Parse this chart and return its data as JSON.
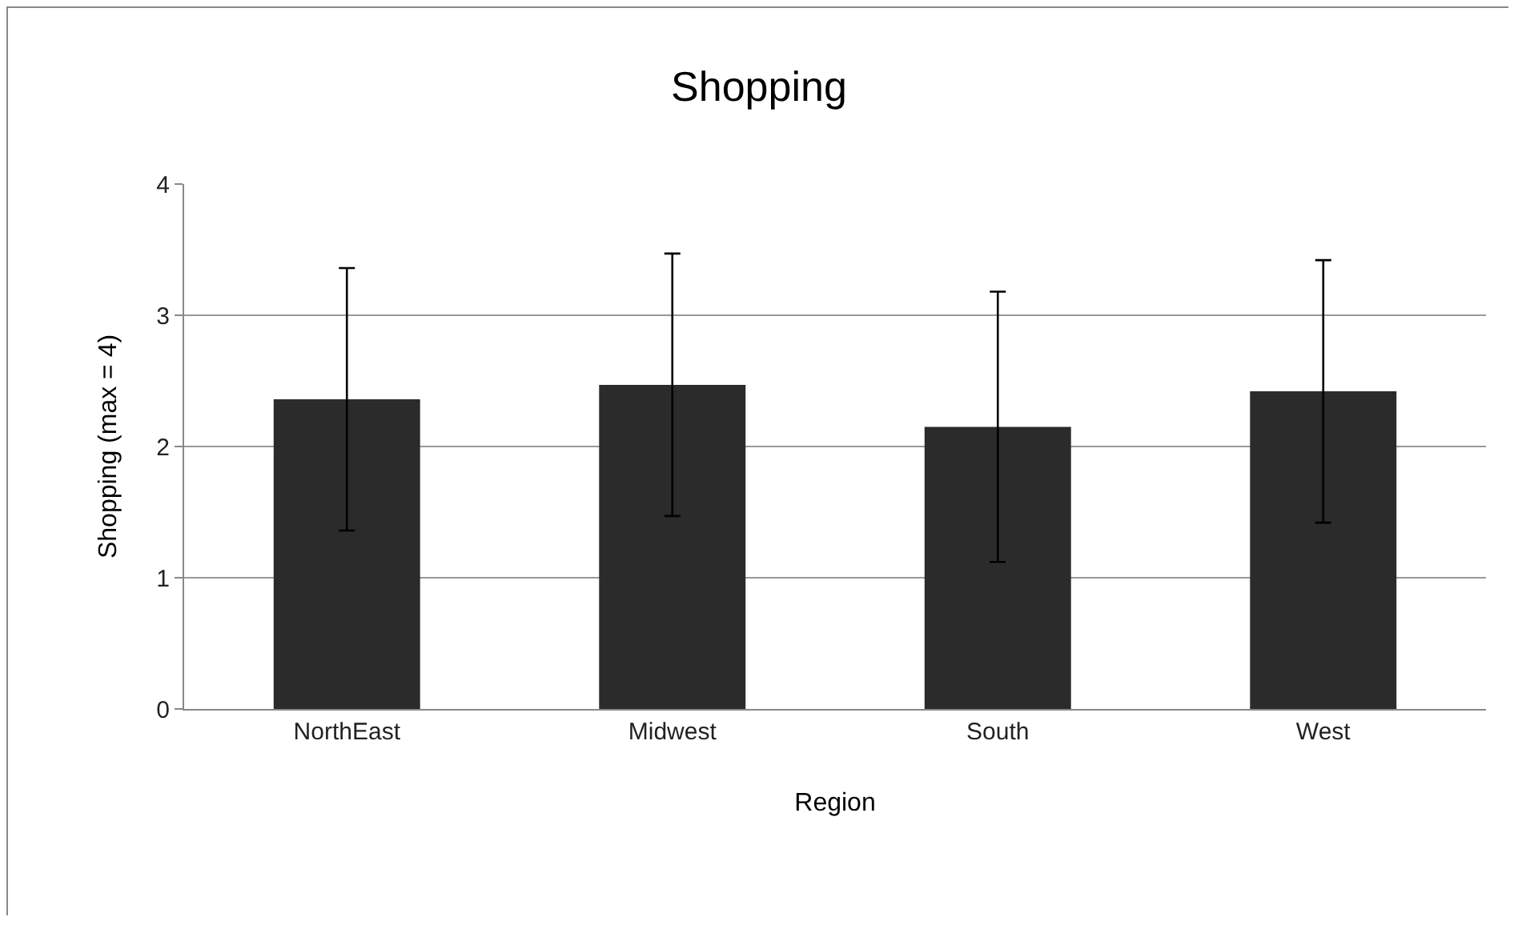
{
  "chart_data": {
    "type": "bar",
    "title": "Shopping",
    "xlabel": "Region",
    "ylabel": "Shopping (max = 4)",
    "categories": [
      "NorthEast",
      "Midwest",
      "South",
      "West"
    ],
    "values": [
      2.36,
      2.47,
      2.15,
      2.42
    ],
    "errors": [
      1.0,
      1.0,
      1.03,
      1.0
    ],
    "color": "#2b2b2b",
    "ylim": [
      0,
      4
    ],
    "yticks": [
      0,
      1,
      2,
      3,
      4
    ],
    "grid": "y",
    "legend": false
  }
}
